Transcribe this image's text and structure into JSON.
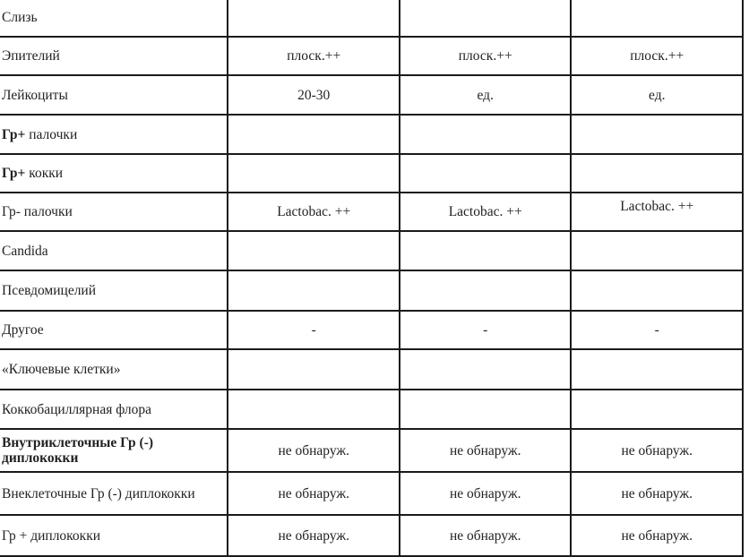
{
  "rows": [
    {
      "label": "Слизь",
      "bold_prefix": "",
      "values": [
        "",
        "",
        ""
      ]
    },
    {
      "label": "Эпителий",
      "bold_prefix": "",
      "values": [
        "плоск.++",
        "плоск.++",
        "плоск.++"
      ]
    },
    {
      "label": "Лейкоциты",
      "bold_prefix": "",
      "values": [
        "20-30",
        "ед.",
        "ед."
      ]
    },
    {
      "label": " палочки",
      "bold_prefix": "Гр+",
      "values": [
        "",
        "",
        ""
      ]
    },
    {
      "label": " кокки",
      "bold_prefix": "Гр+",
      "values": [
        "",
        "",
        ""
      ]
    },
    {
      "label": "Гр- палочки",
      "bold_prefix": "",
      "values": [
        "Lactobac. ++",
        "Lactobac. ++",
        "Lactobac. ++"
      ]
    },
    {
      "label": "Candida",
      "bold_prefix": "",
      "values": [
        "",
        "",
        ""
      ]
    },
    {
      "label": "Псевдомицелий",
      "bold_prefix": "",
      "values": [
        "",
        "",
        ""
      ]
    },
    {
      "label": "Другое",
      "bold_prefix": "",
      "values": [
        "-",
        "-",
        "-"
      ]
    },
    {
      "label": "«Ключевые клетки»",
      "bold_prefix": "",
      "values": [
        "",
        "",
        ""
      ]
    },
    {
      "label": "Коккобациллярная флора",
      "bold_prefix": "",
      "values": [
        "",
        "",
        ""
      ]
    },
    {
      "label": "",
      "bold_prefix": "Внутриклеточные Гр (-) диплококки",
      "values": [
        "не обнаруж.",
        "не обнаруж.",
        "не обнаруж."
      ]
    },
    {
      "label": "Внеклеточные Гр (-) диплококки",
      "bold_prefix": "",
      "values": [
        "не обнаруж.",
        "не обнаруж.",
        "не обнаруж."
      ]
    },
    {
      "label": "Гр + диплококки",
      "bold_prefix": "",
      "values": [
        "не обнаруж.",
        "не обнаруж.",
        "не обнаруж."
      ]
    }
  ]
}
